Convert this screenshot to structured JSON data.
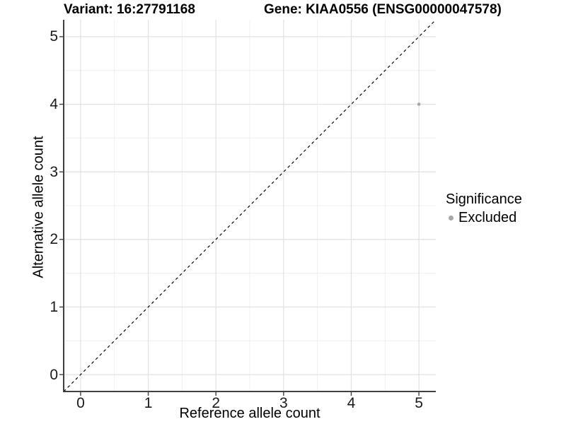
{
  "title": {
    "variant": "Variant: 16:27791168",
    "gene": "Gene: KIAA0556 (ENSG00000047578)"
  },
  "chart_data": {
    "type": "scatter",
    "xlabel": "Reference allele count",
    "ylabel": "Alternative allele count",
    "xlim": [
      -0.25,
      5.25
    ],
    "ylim": [
      -0.25,
      5.25
    ],
    "xticks": [
      0,
      1,
      2,
      3,
      4,
      5
    ],
    "yticks": [
      0,
      1,
      2,
      3,
      4,
      5
    ],
    "xminor": [
      0.5,
      1.5,
      2.5,
      3.5,
      4.5
    ],
    "yminor": [
      0.5,
      1.5,
      2.5,
      3.5,
      4.5
    ],
    "grid": true,
    "series": [
      {
        "name": "Excluded",
        "color": "#a6a6a6",
        "points": [
          {
            "x": 5,
            "y": 4
          }
        ]
      }
    ],
    "identity_line": {
      "style": "dashed",
      "color": "#000000",
      "from": [
        -0.25,
        -0.25
      ],
      "to": [
        5.25,
        5.25
      ]
    },
    "legend": {
      "title": "Significance",
      "position": "right",
      "entries": [
        {
          "label": "Excluded",
          "color": "#a6a6a6"
        }
      ]
    }
  },
  "colors": {
    "background": "#ffffff",
    "major_grid": "#e3e3e3",
    "minor_grid": "#efefef",
    "axis_line": "#404040",
    "tick_mark": "#404040",
    "point": "#a6a6a6"
  }
}
